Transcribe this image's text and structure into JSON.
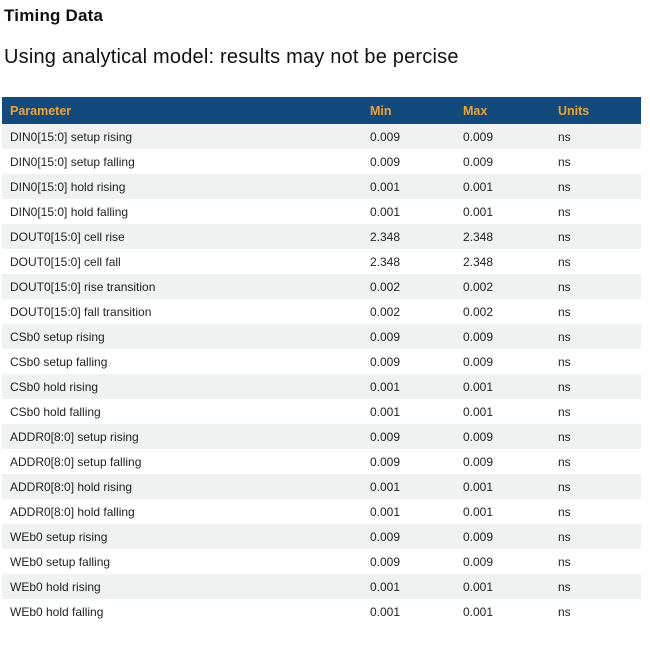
{
  "page": {
    "title": "Timing Data",
    "subtitle": "Using analytical model: results may not be percise"
  },
  "colors": {
    "header_bg": "#134A7E",
    "header_text": "#F0A330",
    "row_stripe": "#F0F1F1",
    "body_text": "#222222"
  },
  "table": {
    "columns": [
      "Parameter",
      "Min",
      "Max",
      "Units"
    ],
    "rows": [
      {
        "parameter": "DIN0[15:0] setup rising",
        "min": "0.009",
        "max": "0.009",
        "units": "ns"
      },
      {
        "parameter": "DIN0[15:0] setup falling",
        "min": "0.009",
        "max": "0.009",
        "units": "ns"
      },
      {
        "parameter": "DIN0[15:0] hold rising",
        "min": "0.001",
        "max": "0.001",
        "units": "ns"
      },
      {
        "parameter": "DIN0[15:0] hold falling",
        "min": "0.001",
        "max": "0.001",
        "units": "ns"
      },
      {
        "parameter": "DOUT0[15:0] cell rise",
        "min": "2.348",
        "max": "2.348",
        "units": "ns"
      },
      {
        "parameter": "DOUT0[15:0] cell fall",
        "min": "2.348",
        "max": "2.348",
        "units": "ns"
      },
      {
        "parameter": "DOUT0[15:0] rise transition",
        "min": "0.002",
        "max": "0.002",
        "units": "ns"
      },
      {
        "parameter": "DOUT0[15:0] fall transition",
        "min": "0.002",
        "max": "0.002",
        "units": "ns"
      },
      {
        "parameter": "CSb0 setup rising",
        "min": "0.009",
        "max": "0.009",
        "units": "ns"
      },
      {
        "parameter": "CSb0 setup falling",
        "min": "0.009",
        "max": "0.009",
        "units": "ns"
      },
      {
        "parameter": "CSb0 hold rising",
        "min": "0.001",
        "max": "0.001",
        "units": "ns"
      },
      {
        "parameter": "CSb0 hold falling",
        "min": "0.001",
        "max": "0.001",
        "units": "ns"
      },
      {
        "parameter": "ADDR0[8:0] setup rising",
        "min": "0.009",
        "max": "0.009",
        "units": "ns"
      },
      {
        "parameter": "ADDR0[8:0] setup falling",
        "min": "0.009",
        "max": "0.009",
        "units": "ns"
      },
      {
        "parameter": "ADDR0[8:0] hold rising",
        "min": "0.001",
        "max": "0.001",
        "units": "ns"
      },
      {
        "parameter": "ADDR0[8:0] hold falling",
        "min": "0.001",
        "max": "0.001",
        "units": "ns"
      },
      {
        "parameter": "WEb0 setup rising",
        "min": "0.009",
        "max": "0.009",
        "units": "ns"
      },
      {
        "parameter": "WEb0 setup falling",
        "min": "0.009",
        "max": "0.009",
        "units": "ns"
      },
      {
        "parameter": "WEb0 hold rising",
        "min": "0.001",
        "max": "0.001",
        "units": "ns"
      },
      {
        "parameter": "WEb0 hold falling",
        "min": "0.001",
        "max": "0.001",
        "units": "ns"
      }
    ]
  }
}
